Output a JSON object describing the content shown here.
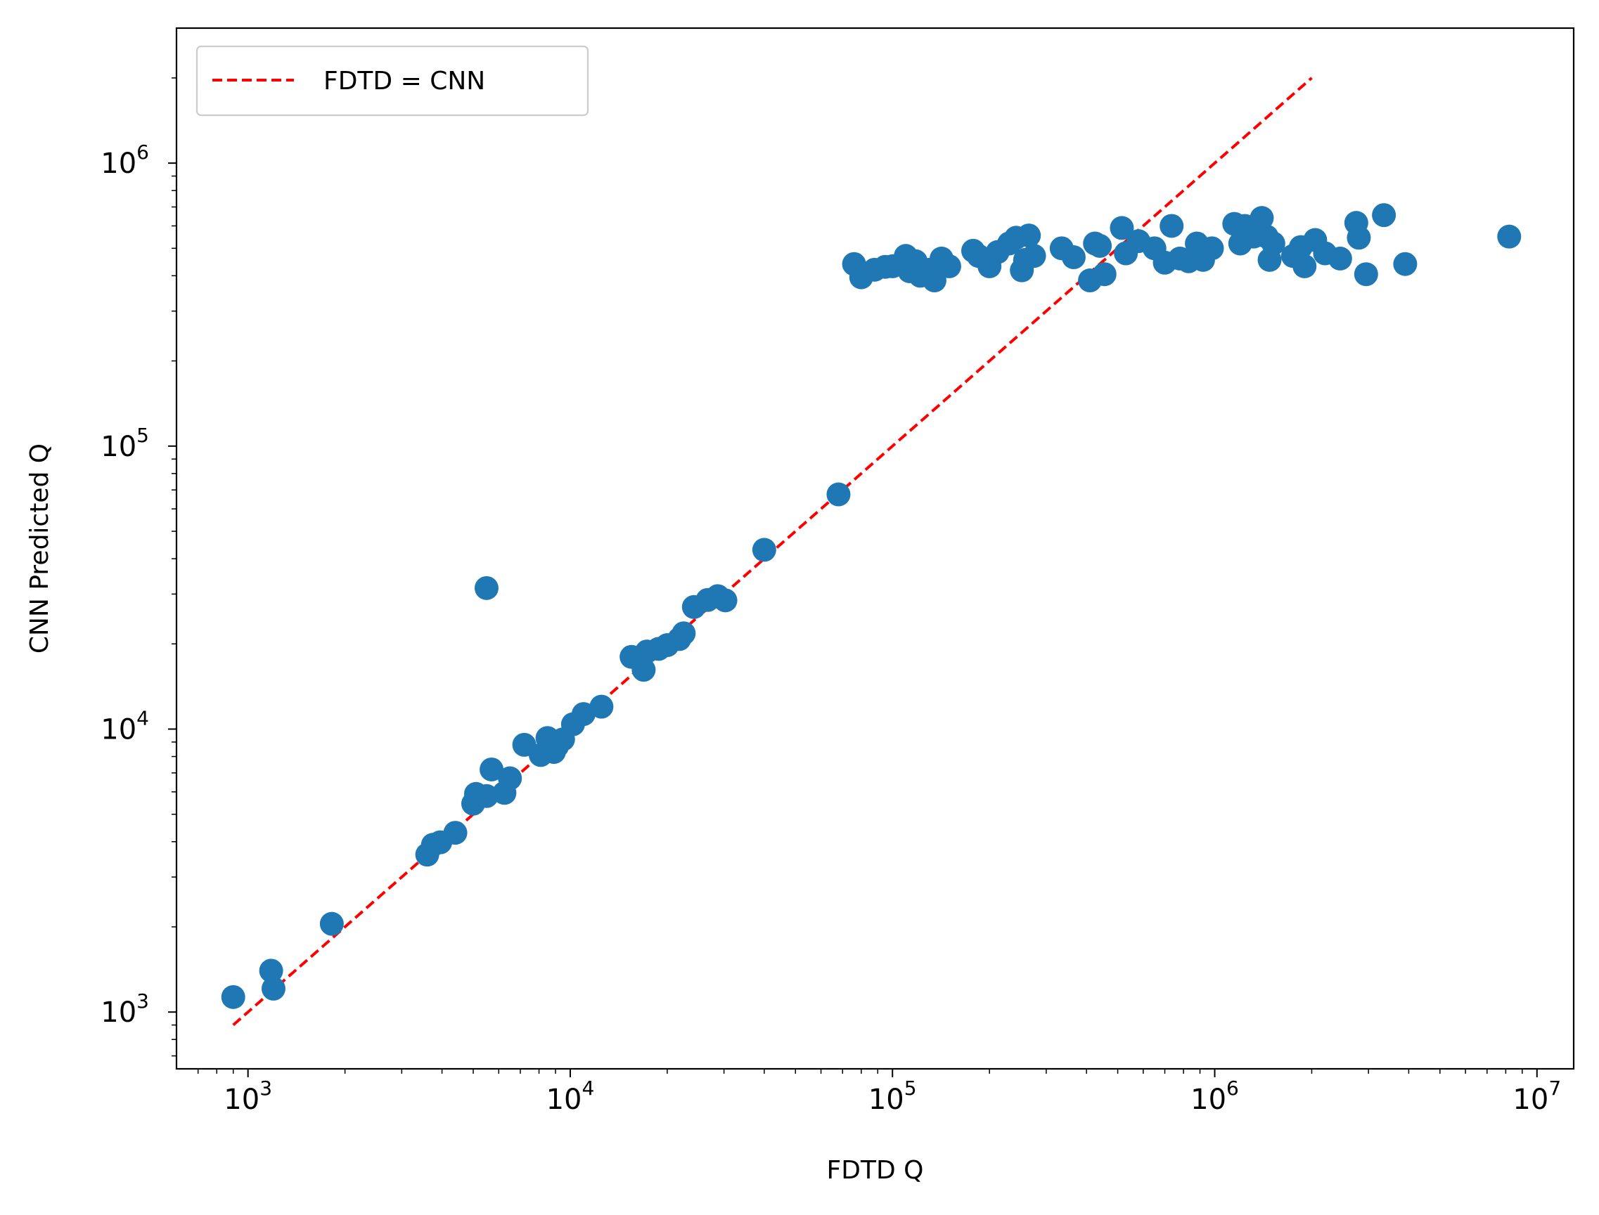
{
  "chart_data": {
    "type": "scatter",
    "xlabel": "FDTD Q",
    "ylabel": "CNN Predicted Q",
    "xscale": "log",
    "yscale": "log",
    "xlim": [
      600,
      13000000
    ],
    "ylim": [
      630,
      3000000
    ],
    "x_ticks": [
      {
        "value": 1000,
        "base": "10",
        "exp": "3"
      },
      {
        "value": 10000,
        "base": "10",
        "exp": "4"
      },
      {
        "value": 100000,
        "base": "10",
        "exp": "5"
      },
      {
        "value": 1000000,
        "base": "10",
        "exp": "6"
      },
      {
        "value": 10000000,
        "base": "10",
        "exp": "7"
      }
    ],
    "y_ticks": [
      {
        "value": 1000,
        "base": "10",
        "exp": "3"
      },
      {
        "value": 10000,
        "base": "10",
        "exp": "4"
      },
      {
        "value": 100000,
        "base": "10",
        "exp": "5"
      },
      {
        "value": 1000000,
        "base": "10",
        "exp": "6"
      }
    ],
    "grid": false,
    "legend": {
      "position": "top-left",
      "entries": [
        "FDTD = CNN"
      ]
    },
    "colors": {
      "points": "#1f77b4",
      "reference_line": "#ff0000",
      "axes": "#000000"
    },
    "reference_line": {
      "name": "FDTD = CNN",
      "x": [
        900,
        2000000
      ],
      "y": [
        900,
        2000000
      ],
      "style": "dashed"
    },
    "series": [
      {
        "x": [
          900,
          1180,
          1200,
          1820,
          3600,
          3750,
          3950,
          4400,
          5000,
          5100,
          5500,
          5700,
          6250,
          6500,
          7200,
          8100,
          8500,
          8900,
          9100,
          9500,
          10200,
          11000,
          12500,
          15500,
          16900,
          17300,
          18800,
          20000,
          21800,
          22500,
          24200,
          26700,
          28700,
          30300,
          40000,
          68000,
          5500,
          76000,
          80000,
          88000,
          95000,
          100000,
          110000,
          113000,
          118000,
          122000,
          130000,
          135000,
          142000,
          150000,
          178000,
          185000,
          200000,
          212000,
          230000,
          242000,
          252000,
          258000,
          265000,
          275000,
          335000,
          365000,
          410000,
          425000,
          440000,
          455000,
          515000,
          530000,
          580000,
          650000,
          700000,
          735000,
          780000,
          830000,
          880000,
          920000,
          980000,
          1150000,
          1200000,
          1240000,
          1320000,
          1400000,
          1450000,
          1480000,
          1520000,
          1750000,
          1850000,
          1900000,
          2050000,
          2200000,
          2450000,
          2750000,
          2800000,
          2950000,
          3350000,
          3900000,
          8200000
        ],
        "y": [
          1130,
          1400,
          1210,
          2050,
          3600,
          3900,
          3980,
          4300,
          5450,
          5900,
          5800,
          7200,
          5950,
          6700,
          8800,
          8100,
          9300,
          8300,
          8700,
          9200,
          10400,
          11300,
          12000,
          18000,
          16200,
          18800,
          19200,
          19800,
          20800,
          21800,
          27000,
          28600,
          29500,
          28500,
          43000,
          67500,
          31500,
          440000,
          395000,
          420000,
          430000,
          432000,
          470000,
          415000,
          450000,
          400000,
          420000,
          385000,
          460000,
          432000,
          490000,
          470000,
          432000,
          485000,
          520000,
          545000,
          418000,
          455000,
          555000,
          470000,
          500000,
          465000,
          385000,
          520000,
          510000,
          405000,
          590000,
          480000,
          530000,
          500000,
          445000,
          600000,
          460000,
          450000,
          520000,
          455000,
          500000,
          610000,
          520000,
          600000,
          550000,
          640000,
          550000,
          455000,
          520000,
          470000,
          505000,
          432000,
          535000,
          480000,
          460000,
          615000,
          545000,
          405000,
          655000,
          440000,
          550000
        ]
      }
    ]
  }
}
